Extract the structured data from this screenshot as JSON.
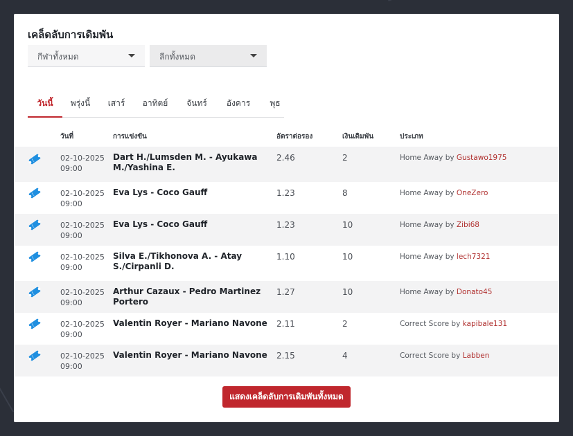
{
  "title": "เคล็ดลับการเดิมพัน",
  "filters": {
    "sport": "กีฬาทั้งหมด",
    "league": "ลีกทั้งหมด"
  },
  "tabs": [
    "วันนี้",
    "พรุ่งนี้",
    "เสาร์",
    "อาทิตย์",
    "จันทร์",
    "อังคาร",
    "พุธ"
  ],
  "table": {
    "headers": {
      "date": "วันที่",
      "match": "การแข่งขัน",
      "odds": "อัตราต่อรอง",
      "stake": "เงินเดิมพัน",
      "type": "ประเภท"
    },
    "by_word": "by",
    "rows": [
      {
        "date": "02-10-2025",
        "time": "09:00",
        "match": "Dart H./Lumsden M. - Ayukawa M./Yashina E.",
        "odds": "2.46",
        "stake": "2",
        "type": "Home Away",
        "user": "Gustawo1975"
      },
      {
        "date": "02-10-2025",
        "time": "09:00",
        "match": "Eva Lys - Coco Gauff",
        "odds": "1.23",
        "stake": "8",
        "type": "Home Away",
        "user": "OneZero"
      },
      {
        "date": "02-10-2025",
        "time": "09:00",
        "match": "Eva Lys - Coco Gauff",
        "odds": "1.23",
        "stake": "10",
        "type": "Home Away",
        "user": "Zibi68"
      },
      {
        "date": "02-10-2025",
        "time": "09:00",
        "match": "Silva E./Tikhonova A. - Atay S./Cirpanli D.",
        "odds": "1.10",
        "stake": "10",
        "type": "Home Away",
        "user": "lech7321"
      },
      {
        "date": "02-10-2025",
        "time": "09:00",
        "match": "Arthur Cazaux - Pedro Martinez Portero",
        "odds": "1.27",
        "stake": "10",
        "type": "Home Away",
        "user": "Donato45"
      },
      {
        "date": "02-10-2025",
        "time": "09:00",
        "match": "Valentin Royer - Mariano Navone",
        "odds": "2.11",
        "stake": "2",
        "type": "Correct Score",
        "user": "kapibale131"
      },
      {
        "date": "02-10-2025",
        "time": "09:00",
        "match": "Valentin Royer - Mariano Navone",
        "odds": "2.15",
        "stake": "4",
        "type": "Correct Score",
        "user": "Labben"
      }
    ]
  },
  "show_all_button": "แสดงเคล็ดลับการเดิมพันทั้งหมด",
  "colors": {
    "accent": "#c0272d",
    "ticket_icon": "#1f8fe0",
    "background": "#2b2f38"
  },
  "icons": {
    "row_icon": "ticket-icon",
    "dropdown": "caret-down-icon"
  }
}
